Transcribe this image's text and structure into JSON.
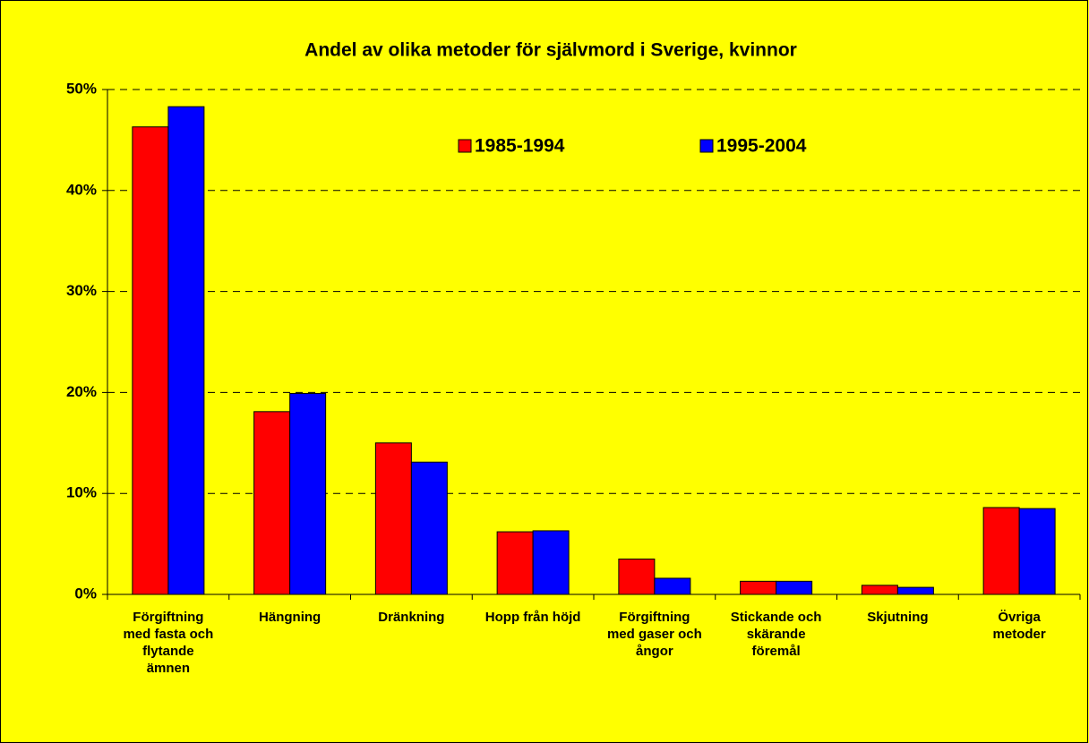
{
  "chart_data": {
    "type": "bar",
    "title": "Andel av olika metoder för självmord i Sverige, kvinnor",
    "categories": [
      "Förgiftning\nmed fasta och\nflytande\nämnen",
      "Hängning",
      "Dränkning",
      "Hopp från höjd",
      "Förgiftning\nmed gaser och\nångor",
      "Stickande och\nskärande\nföremål",
      "Skjutning",
      "Övriga\nmetoder"
    ],
    "series": [
      {
        "name": "1985-1994",
        "color": "#ff0000",
        "values": [
          46.3,
          18.1,
          15.0,
          6.2,
          3.5,
          1.3,
          0.9,
          8.6
        ]
      },
      {
        "name": "1995-2004",
        "color": "#0000ff",
        "values": [
          48.3,
          19.9,
          13.1,
          6.3,
          1.6,
          1.3,
          0.7,
          8.5
        ]
      }
    ],
    "ylim": [
      0,
      50
    ],
    "yticks": [
      {
        "value": 0,
        "label": "0%"
      },
      {
        "value": 10,
        "label": "10%"
      },
      {
        "value": 20,
        "label": "20%"
      },
      {
        "value": 30,
        "label": "30%"
      },
      {
        "value": 40,
        "label": "40%"
      },
      {
        "value": 50,
        "label": "50%"
      }
    ],
    "grid": true
  }
}
